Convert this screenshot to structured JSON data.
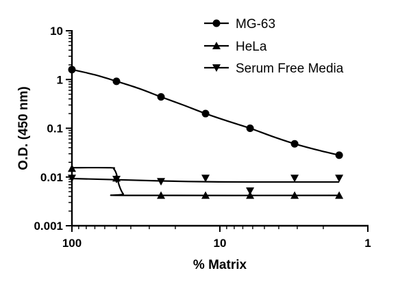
{
  "chart_data": {
    "type": "line",
    "xlabel": "% Matrix",
    "ylabel": "O.D. (450 nm)",
    "x_scale": "log",
    "x_reversed": true,
    "xlim": [
      100,
      1
    ],
    "y_scale": "log",
    "ylim": [
      0.001,
      10
    ],
    "x_ticks": [
      {
        "value": 100,
        "label": "100"
      },
      {
        "value": 10,
        "label": "10"
      },
      {
        "value": 1,
        "label": "1"
      }
    ],
    "y_ticks": [
      {
        "value": 10,
        "label": "10"
      },
      {
        "value": 1,
        "label": "1"
      },
      {
        "value": 0.1,
        "label": "0.1"
      },
      {
        "value": 0.01,
        "label": "0.01"
      },
      {
        "value": 0.001,
        "label": "0.001"
      }
    ],
    "grid": false,
    "legend_position": "top-right",
    "series": [
      {
        "name": "MG-63",
        "marker": "circle",
        "points": [
          {
            "x": 100,
            "y": 1.6
          },
          {
            "x": 50,
            "y": 0.92
          },
          {
            "x": 25,
            "y": 0.44
          },
          {
            "x": 12.5,
            "y": 0.2
          },
          {
            "x": 6.25,
            "y": 0.1
          },
          {
            "x": 3.125,
            "y": 0.048
          },
          {
            "x": 1.5625,
            "y": 0.028
          }
        ],
        "curve": [
          {
            "x": 100,
            "y": 1.6
          },
          {
            "x": 70,
            "y": 1.25
          },
          {
            "x": 50,
            "y": 0.92
          },
          {
            "x": 35,
            "y": 0.65
          },
          {
            "x": 25,
            "y": 0.44
          },
          {
            "x": 17.7,
            "y": 0.3
          },
          {
            "x": 12.5,
            "y": 0.2
          },
          {
            "x": 8.84,
            "y": 0.14
          },
          {
            "x": 6.25,
            "y": 0.1
          },
          {
            "x": 4.42,
            "y": 0.068
          },
          {
            "x": 3.125,
            "y": 0.048
          },
          {
            "x": 2.21,
            "y": 0.036
          },
          {
            "x": 1.5625,
            "y": 0.028
          }
        ]
      },
      {
        "name": "HeLa",
        "marker": "triangle-up",
        "points": [
          {
            "x": 100,
            "y": 0.015
          },
          {
            "x": 50,
            "y": 0.0095
          },
          {
            "x": 25,
            "y": 0.0042
          },
          {
            "x": 12.5,
            "y": 0.0042
          },
          {
            "x": 6.25,
            "y": 0.0042
          },
          {
            "x": 3.125,
            "y": 0.0042
          },
          {
            "x": 1.5625,
            "y": 0.0042
          }
        ],
        "curve": [
          {
            "x": 100,
            "y": 0.0155
          },
          {
            "x": 55,
            "y": 0.0155
          },
          {
            "x": 52,
            "y": 0.0145
          },
          {
            "x": 50,
            "y": 0.0115
          },
          {
            "x": 48,
            "y": 0.0068
          },
          {
            "x": 45,
            "y": 0.0045
          },
          {
            "x": 42,
            "y": 0.0042
          },
          {
            "x": 1.5625,
            "y": 0.0042
          }
        ]
      },
      {
        "name": "Serum Free Media",
        "marker": "triangle-down",
        "points": [
          {
            "x": 100,
            "y": 0.0095
          },
          {
            "x": 50,
            "y": 0.009
          },
          {
            "x": 25,
            "y": 0.0081
          },
          {
            "x": 12.5,
            "y": 0.0095
          },
          {
            "x": 6.25,
            "y": 0.0052
          },
          {
            "x": 3.125,
            "y": 0.0095
          },
          {
            "x": 1.5625,
            "y": 0.0095
          }
        ],
        "curve": [
          {
            "x": 100,
            "y": 0.0093
          },
          {
            "x": 50,
            "y": 0.0088
          },
          {
            "x": 25,
            "y": 0.0083
          },
          {
            "x": 12.5,
            "y": 0.008
          },
          {
            "x": 6.25,
            "y": 0.0079
          },
          {
            "x": 1.5625,
            "y": 0.0079
          }
        ]
      }
    ]
  }
}
